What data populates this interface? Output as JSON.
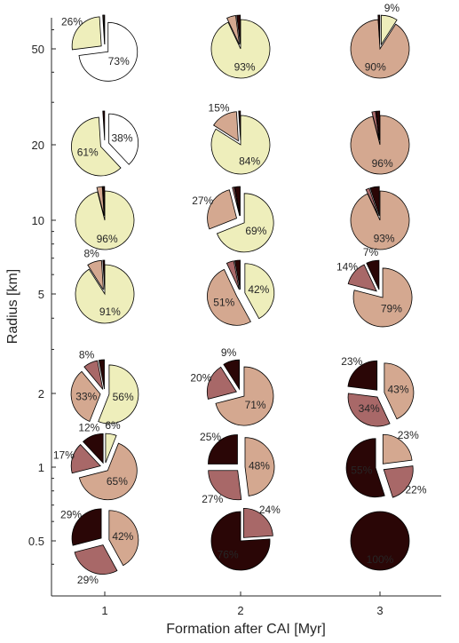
{
  "chart_data": {
    "type": "pie",
    "title": "",
    "xlabel": "Formation after CAI [Myr]",
    "ylabel": "Radius [km]",
    "x_ticks": [
      "1",
      "2",
      "3"
    ],
    "y_ticks": [
      "0.5",
      "1",
      "2",
      "5",
      "10",
      "20",
      "50"
    ],
    "y_scale": "log",
    "xlim": [
      0.5,
      3.5
    ],
    "ylim": [
      0.35,
      75
    ],
    "colors": [
      "#ffffff",
      "#eeeebb",
      "#d4a890",
      "#a86868",
      "#2a0606"
    ],
    "pies": [
      {
        "x": 1,
        "y": 50,
        "slices": [
          {
            "v": 73,
            "c": 0,
            "e": 1,
            "label": "73%"
          },
          {
            "v": 26,
            "c": 1,
            "e": 1,
            "label": "26%"
          },
          {
            "v": 0.5,
            "c": 2,
            "e": 1,
            "label": ""
          },
          {
            "v": 0.5,
            "c": 4,
            "e": 1,
            "label": ""
          }
        ]
      },
      {
        "x": 2,
        "y": 50,
        "slices": [
          {
            "v": 93,
            "c": 1,
            "e": 0,
            "label": "93%"
          },
          {
            "v": 5,
            "c": 2,
            "e": 1,
            "label": ""
          },
          {
            "v": 2,
            "c": 4,
            "e": 1,
            "label": ""
          }
        ]
      },
      {
        "x": 3,
        "y": 50,
        "slices": [
          {
            "v": 9,
            "c": 1,
            "e": 1,
            "label": "9%"
          },
          {
            "v": 90,
            "c": 2,
            "e": 0,
            "label": "90%"
          },
          {
            "v": 1,
            "c": 4,
            "e": 1,
            "label": ""
          }
        ]
      },
      {
        "x": 1,
        "y": 20,
        "slices": [
          {
            "v": 38,
            "c": 0,
            "e": 1,
            "label": "38%"
          },
          {
            "v": 61,
            "c": 1,
            "e": 1,
            "label": "61%"
          },
          {
            "v": 1,
            "c": 4,
            "e": 1,
            "label": ""
          }
        ]
      },
      {
        "x": 2,
        "y": 20,
        "slices": [
          {
            "v": 84,
            "c": 1,
            "e": 0,
            "label": "84%"
          },
          {
            "v": 15,
            "c": 2,
            "e": 1,
            "label": "15%"
          },
          {
            "v": 1,
            "c": 4,
            "e": 1,
            "label": ""
          }
        ]
      },
      {
        "x": 3,
        "y": 20,
        "slices": [
          {
            "v": 96,
            "c": 2,
            "e": 0,
            "label": "96%"
          },
          {
            "v": 2,
            "c": 3,
            "e": 1,
            "label": ""
          },
          {
            "v": 2,
            "c": 4,
            "e": 1,
            "label": ""
          }
        ]
      },
      {
        "x": 1,
        "y": 10,
        "slices": [
          {
            "v": 96,
            "c": 1,
            "e": 0,
            "label": "96%"
          },
          {
            "v": 3,
            "c": 2,
            "e": 1,
            "label": ""
          },
          {
            "v": 1,
            "c": 4,
            "e": 1,
            "label": ""
          }
        ]
      },
      {
        "x": 2,
        "y": 10,
        "slices": [
          {
            "v": 69,
            "c": 1,
            "e": 1,
            "label": "69%"
          },
          {
            "v": 27,
            "c": 2,
            "e": 1,
            "label": "27%"
          },
          {
            "v": 1,
            "c": 3,
            "e": 1,
            "label": ""
          },
          {
            "v": 3,
            "c": 4,
            "e": 1,
            "label": ""
          }
        ]
      },
      {
        "x": 3,
        "y": 10,
        "slices": [
          {
            "v": 93,
            "c": 2,
            "e": 0,
            "label": "93%"
          },
          {
            "v": 2,
            "c": 3,
            "e": 1,
            "label": ""
          },
          {
            "v": 5,
            "c": 4,
            "e": 1,
            "label": ""
          }
        ]
      },
      {
        "x": 1,
        "y": 5,
        "slices": [
          {
            "v": 91,
            "c": 1,
            "e": 0,
            "label": "91%"
          },
          {
            "v": 8,
            "c": 2,
            "e": 1,
            "label": "8%"
          },
          {
            "v": 1,
            "c": 4,
            "e": 1,
            "label": ""
          }
        ]
      },
      {
        "x": 2,
        "y": 5,
        "slices": [
          {
            "v": 42,
            "c": 1,
            "e": 1,
            "label": "42%"
          },
          {
            "v": 51,
            "c": 2,
            "e": 1,
            "label": "51%"
          },
          {
            "v": 4,
            "c": 3,
            "e": 1,
            "label": ""
          },
          {
            "v": 3,
            "c": 4,
            "e": 1,
            "label": ""
          }
        ]
      },
      {
        "x": 3,
        "y": 5,
        "slices": [
          {
            "v": 79,
            "c": 2,
            "e": 1,
            "label": "79%"
          },
          {
            "v": 14,
            "c": 3,
            "e": 1,
            "label": "14%"
          },
          {
            "v": 7,
            "c": 4,
            "e": 1,
            "label": "7%"
          }
        ]
      },
      {
        "x": 1,
        "y": 2,
        "slices": [
          {
            "v": 56,
            "c": 1,
            "e": 1,
            "label": "56%"
          },
          {
            "v": 33,
            "c": 2,
            "e": 1,
            "label": "33%"
          },
          {
            "v": 8,
            "c": 3,
            "e": 1,
            "label": "8%"
          },
          {
            "v": 3,
            "c": 4,
            "e": 1,
            "label": ""
          }
        ]
      },
      {
        "x": 2,
        "y": 2,
        "slices": [
          {
            "v": 71,
            "c": 2,
            "e": 1,
            "label": "71%"
          },
          {
            "v": 20,
            "c": 3,
            "e": 1,
            "label": "20%"
          },
          {
            "v": 9,
            "c": 4,
            "e": 1,
            "label": "9%"
          }
        ]
      },
      {
        "x": 3,
        "y": 2,
        "slices": [
          {
            "v": 43,
            "c": 2,
            "e": 1,
            "label": "43%"
          },
          {
            "v": 34,
            "c": 3,
            "e": 1,
            "label": "34%"
          },
          {
            "v": 23,
            "c": 4,
            "e": 1,
            "label": "23%"
          }
        ]
      },
      {
        "x": 1,
        "y": 1,
        "slices": [
          {
            "v": 6,
            "c": 1,
            "e": 1,
            "label": "6%"
          },
          {
            "v": 65,
            "c": 2,
            "e": 1,
            "label": "65%"
          },
          {
            "v": 17,
            "c": 3,
            "e": 1,
            "label": "17%"
          },
          {
            "v": 12,
            "c": 4,
            "e": 1,
            "label": "12%"
          }
        ]
      },
      {
        "x": 2,
        "y": 1,
        "slices": [
          {
            "v": 48,
            "c": 2,
            "e": 1,
            "label": "48%"
          },
          {
            "v": 27,
            "c": 3,
            "e": 1,
            "label": "27%"
          },
          {
            "v": 25,
            "c": 4,
            "e": 1,
            "label": "25%"
          }
        ]
      },
      {
        "x": 3,
        "y": 1,
        "slices": [
          {
            "v": 23,
            "c": 2,
            "e": 1,
            "label": "23%"
          },
          {
            "v": 22,
            "c": 3,
            "e": 1,
            "label": "22%"
          },
          {
            "v": 55,
            "c": 4,
            "e": 1,
            "label": "55%"
          }
        ]
      },
      {
        "x": 1,
        "y": 0.5,
        "slices": [
          {
            "v": 42,
            "c": 2,
            "e": 1,
            "label": "42%"
          },
          {
            "v": 29,
            "c": 3,
            "e": 1,
            "label": "29%"
          },
          {
            "v": 29,
            "c": 4,
            "e": 1,
            "label": "29%"
          }
        ]
      },
      {
        "x": 2,
        "y": 0.5,
        "slices": [
          {
            "v": 24,
            "c": 3,
            "e": 1,
            "label": "24%"
          },
          {
            "v": 76,
            "c": 4,
            "e": 0,
            "label": "76%"
          }
        ]
      },
      {
        "x": 3,
        "y": 0.5,
        "slices": [
          {
            "v": 100,
            "c": 4,
            "e": 0,
            "label": "100%"
          }
        ]
      }
    ]
  }
}
